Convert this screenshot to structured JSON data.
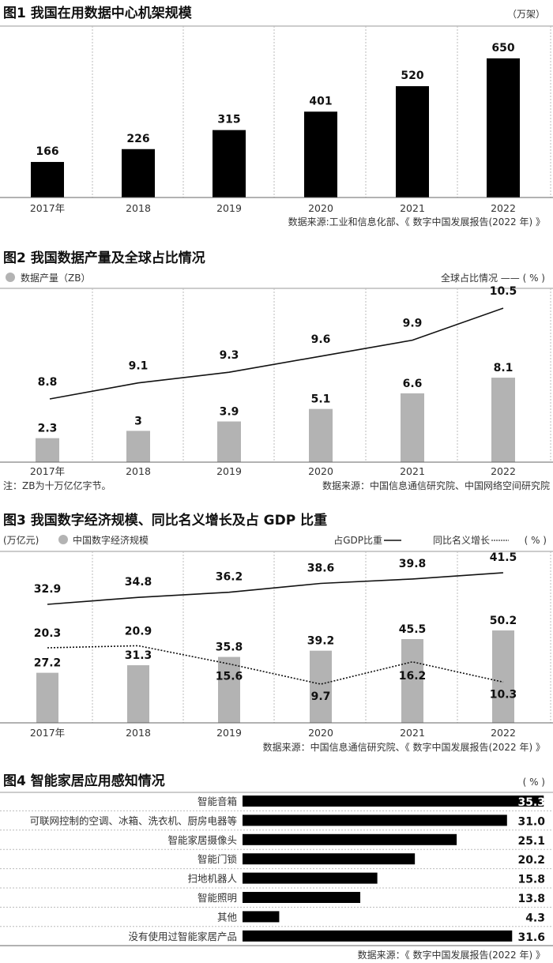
{
  "chart_data": [
    {
      "type": "bar",
      "title": "图1  我国在用数据中心机架规模",
      "unit": "（万架）",
      "categories": [
        "2017年",
        "2018",
        "2019",
        "2020",
        "2021",
        "2022"
      ],
      "values": [
        166,
        226,
        315,
        401,
        520,
        650
      ],
      "source": "数据来源:工业和信息化部、《 数字中国发展报告(2022 年) 》",
      "color": "#000000"
    },
    {
      "type": "bar+line",
      "title": "图2 我国数据产量及全球占比情况",
      "legend_bar": "数据产量（ZB）",
      "legend_line": "全球占比情况 —— ( % )",
      "categories": [
        "2017年",
        "2018",
        "2019",
        "2020",
        "2021",
        "2022"
      ],
      "series": [
        {
          "name": "数据产量",
          "type": "bar",
          "values": [
            2.3,
            3,
            3.9,
            5.1,
            6.6,
            8.1
          ],
          "labels": [
            "2.3",
            "3",
            "3.9",
            "5.1",
            "6.6",
            "8.1"
          ]
        },
        {
          "name": "全球占比情况",
          "type": "line",
          "values": [
            8.8,
            9.1,
            9.3,
            9.6,
            9.9,
            10.5
          ],
          "labels": [
            "8.8",
            "9.1",
            "9.3",
            "9.6",
            "9.9",
            "10.5"
          ]
        }
      ],
      "note": "注：ZB为十万亿亿字节。",
      "source": "数据来源：中国信息通信研究院、中国网络空间研究院",
      "bar_color": "#b3b3b3"
    },
    {
      "type": "bar+line",
      "title": "图3 我国数字经济规模、同比名义增长及占 GDP 比重",
      "unit": "(万亿元)",
      "legend_bar": "中国数字经济规模",
      "legend_gdp": "占GDP比重",
      "legend_growth": "同比名义增长",
      "legend_pct": "( % )",
      "categories": [
        "2017年",
        "2018",
        "2019",
        "2020",
        "2021",
        "2022"
      ],
      "series": [
        {
          "name": "中国数字经济规模",
          "type": "bar",
          "values": [
            27.2,
            31.3,
            35.8,
            39.2,
            45.5,
            50.2
          ],
          "labels": [
            "27.2",
            "31.3",
            "35.8",
            "39.2",
            "45.5",
            "50.2"
          ]
        },
        {
          "name": "占GDP比重",
          "type": "line",
          "values": [
            32.9,
            34.8,
            36.2,
            38.6,
            39.8,
            41.5
          ],
          "labels": [
            "32.9",
            "34.8",
            "36.2",
            "38.6",
            "39.8",
            "41.5"
          ]
        },
        {
          "name": "同比名义增长",
          "type": "dashed-line",
          "values": [
            20.3,
            20.9,
            15.6,
            9.7,
            16.2,
            10.3
          ],
          "labels": [
            "20.3",
            "20.9",
            "15.6",
            "9.7",
            "16.2",
            "10.3"
          ]
        }
      ],
      "source": "数据来源：中国信息通信研究院、《 数字中国发展报告(2022 年) 》"
    },
    {
      "type": "bar",
      "orientation": "horizontal",
      "title": "图4 智能家居应用感知情况",
      "unit": "( % )",
      "categories": [
        "智能音箱",
        "可联网控制的空调、冰箱、洗衣机、厨房电器等",
        "智能家居摄像头",
        "智能门锁",
        "扫地机器人",
        "智能照明",
        "其他",
        "没有使用过智能家居产品"
      ],
      "values": [
        35.3,
        31.0,
        25.1,
        20.2,
        15.8,
        13.8,
        4.3,
        31.6
      ],
      "labels": [
        "35.3",
        "31.0",
        "25.1",
        "20.2",
        "15.8",
        "13.8",
        "4.3",
        "31.6"
      ],
      "source": "数据来源：《 数字中国发展报告(2022 年) 》"
    }
  ]
}
